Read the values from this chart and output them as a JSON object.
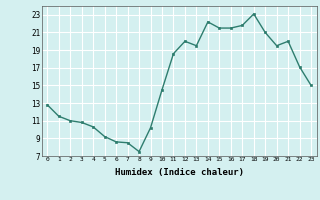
{
  "x": [
    0,
    1,
    2,
    3,
    4,
    5,
    6,
    7,
    8,
    9,
    10,
    11,
    12,
    13,
    14,
    15,
    16,
    17,
    18,
    19,
    20,
    21,
    22,
    23
  ],
  "y": [
    12.8,
    11.5,
    11.0,
    10.8,
    10.3,
    9.2,
    8.6,
    8.5,
    7.5,
    10.2,
    14.5,
    18.6,
    20.0,
    19.5,
    22.2,
    21.5,
    21.5,
    21.8,
    23.1,
    21.0,
    19.5,
    20.0,
    17.1,
    15.0
  ],
  "xlabel": "Humidex (Indice chaleur)",
  "ylim": [
    7,
    24
  ],
  "xlim": [
    -0.5,
    23.5
  ],
  "yticks": [
    7,
    9,
    11,
    13,
    15,
    17,
    19,
    21,
    23
  ],
  "xticks": [
    0,
    1,
    2,
    3,
    4,
    5,
    6,
    7,
    8,
    9,
    10,
    11,
    12,
    13,
    14,
    15,
    16,
    17,
    18,
    19,
    20,
    21,
    22,
    23
  ],
  "line_color": "#2e7d6e",
  "marker_color": "#2e7d6e",
  "bg_color": "#d4f0f0",
  "grid_color": "#ffffff",
  "grid_minor_color": "#e8f8f8",
  "title": ""
}
